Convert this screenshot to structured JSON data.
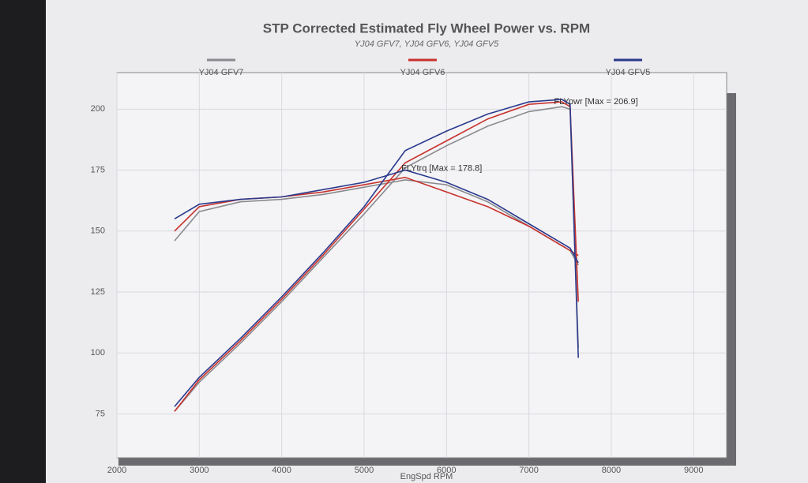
{
  "chart_data": {
    "type": "line",
    "title": "STP Corrected Estimated Fly Wheel Power vs. RPM",
    "subtitle": "YJ04 GFV7, YJ04 GFV6, YJ04 GFV5",
    "x_label": "EngSpd RPM",
    "annotations": [
      "FLYpwr [Max = 206.9]",
      "FLYtrq [Max = 178.8]"
    ],
    "x": [
      2700,
      3000,
      3500,
      4000,
      4500,
      5000,
      5500,
      6000,
      6500,
      7000,
      7400,
      7500,
      7600
    ],
    "series": [
      {
        "name": "YJ04 GFV7",
        "color": "#8a8a8e",
        "power": [
          76,
          88,
          104,
          121,
          139,
          157,
          176,
          185,
          193,
          199,
          201,
          200,
          102
        ],
        "torque": [
          146,
          158,
          162,
          163,
          165,
          168,
          171,
          169,
          162,
          152,
          144,
          142,
          136
        ]
      },
      {
        "name": "YJ04 GFV6",
        "color": "#c8322c",
        "power": [
          76,
          89,
          105,
          122,
          140,
          159,
          178,
          187,
          196,
          202,
          203,
          201,
          121
        ],
        "torque": [
          150,
          160,
          163,
          164,
          166,
          169,
          172,
          166,
          160,
          152,
          144,
          142,
          140
        ]
      },
      {
        "name": "YJ04 GFV5",
        "color": "#2a3a8c",
        "power": [
          78,
          90,
          106,
          123,
          141,
          160,
          183,
          191,
          198,
          203,
          204,
          202,
          98
        ],
        "torque": [
          155,
          161,
          163,
          164,
          167,
          170,
          175,
          170,
          163,
          153,
          145,
          143,
          137
        ]
      }
    ],
    "xlim": [
      2000,
      9400
    ],
    "xticks": [
      2000,
      3000,
      4000,
      5000,
      6000,
      7000,
      8000,
      9000
    ],
    "ylim": [
      57,
      215
    ],
    "yticks": [
      75,
      100,
      125,
      150,
      175,
      200
    ],
    "grid": true
  }
}
